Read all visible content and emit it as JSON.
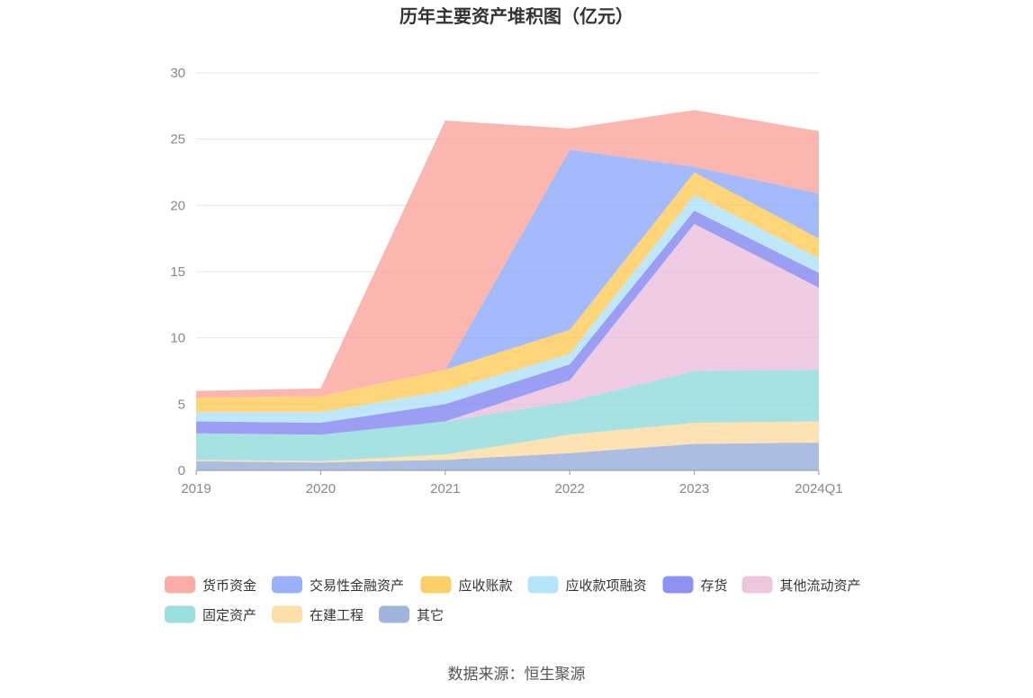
{
  "chart_data": {
    "type": "area",
    "stacked": true,
    "title": "历年主要资产堆积图（亿元）",
    "categories": [
      "2019",
      "2020",
      "2021",
      "2022",
      "2023",
      "2024Q1"
    ],
    "ylim": [
      0,
      30
    ],
    "yticks": [
      "0",
      "5",
      "10",
      "15",
      "20",
      "25",
      "30"
    ],
    "grid": true,
    "legend_position": "bottom",
    "series": [
      {
        "name": "其它",
        "color": "#8fa7d6",
        "values": [
          0.7,
          0.6,
          0.8,
          1.3,
          2.0,
          2.1
        ]
      },
      {
        "name": "在建工程",
        "color": "#fcd99b",
        "values": [
          0.1,
          0.1,
          0.4,
          1.4,
          1.6,
          1.6
        ]
      },
      {
        "name": "固定资产",
        "color": "#8ad8d8",
        "values": [
          2.0,
          2.0,
          2.5,
          2.5,
          3.9,
          3.9
        ]
      },
      {
        "name": "其他流动资产",
        "color": "#eabbd9",
        "values": [
          0.0,
          0.0,
          0.0,
          1.6,
          11.1,
          6.2
        ]
      },
      {
        "name": "存货",
        "color": "#7b7ef0",
        "values": [
          0.9,
          0.9,
          1.3,
          1.2,
          1.0,
          1.1
        ]
      },
      {
        "name": "应收款项融资",
        "color": "#a8dff7",
        "values": [
          0.7,
          0.8,
          1.0,
          0.8,
          1.2,
          1.1
        ]
      },
      {
        "name": "应收账款",
        "color": "#fdc74c",
        "values": [
          1.1,
          1.2,
          1.6,
          1.8,
          1.7,
          1.5
        ]
      },
      {
        "name": "交易性金融资产",
        "color": "#86a3f8",
        "values": [
          0.0,
          0.0,
          0.0,
          13.6,
          0.4,
          3.4
        ]
      },
      {
        "name": "货币资金",
        "color": "#fa9e96",
        "values": [
          0.5,
          0.6,
          18.8,
          1.6,
          4.3,
          4.7
        ]
      }
    ],
    "legend_order": [
      "货币资金",
      "交易性金融资产",
      "应收账款",
      "应收款项融资",
      "存货",
      "其他流动资产",
      "固定资产",
      "在建工程",
      "其它"
    ]
  },
  "footer": {
    "source": "数据来源：恒生聚源"
  }
}
